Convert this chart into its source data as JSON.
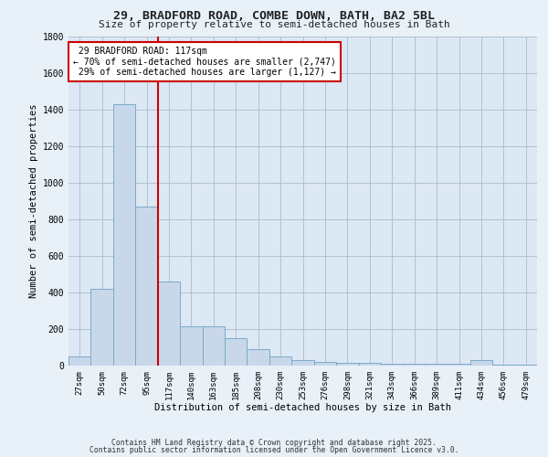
{
  "title_line1": "29, BRADFORD ROAD, COMBE DOWN, BATH, BA2 5BL",
  "title_line2": "Size of property relative to semi-detached houses in Bath",
  "xlabel": "Distribution of semi-detached houses by size in Bath",
  "ylabel": "Number of semi-detached properties",
  "bar_color": "#c8d8ea",
  "bar_edge_color": "#7aaac8",
  "marker_line_color": "#cc0000",
  "marker_label": "29 BRADFORD ROAD: 117sqm",
  "smaller_pct": "70%",
  "smaller_count": "2,747",
  "larger_pct": "29%",
  "larger_count": "1,127",
  "background_color": "#e8f0f8",
  "plot_bg_color": "#dce8f4",
  "categories": [
    "27sqm",
    "50sqm",
    "72sqm",
    "95sqm",
    "117sqm",
    "140sqm",
    "163sqm",
    "185sqm",
    "208sqm",
    "230sqm",
    "253sqm",
    "276sqm",
    "298sqm",
    "321sqm",
    "343sqm",
    "366sqm",
    "389sqm",
    "411sqm",
    "434sqm",
    "456sqm",
    "479sqm"
  ],
  "values": [
    50,
    420,
    1430,
    870,
    460,
    215,
    215,
    150,
    90,
    50,
    30,
    20,
    15,
    13,
    10,
    8,
    8,
    8,
    30,
    5,
    5
  ],
  "ylim": [
    0,
    1800
  ],
  "yticks": [
    0,
    200,
    400,
    600,
    800,
    1000,
    1200,
    1400,
    1600,
    1800
  ],
  "annotation_box_color": "#ffffff",
  "annotation_box_edge_color": "#cc0000",
  "marker_bar_index": 4,
  "footer_line1": "Contains HM Land Registry data © Crown copyright and database right 2025.",
  "footer_line2": "Contains public sector information licensed under the Open Government Licence v3.0."
}
